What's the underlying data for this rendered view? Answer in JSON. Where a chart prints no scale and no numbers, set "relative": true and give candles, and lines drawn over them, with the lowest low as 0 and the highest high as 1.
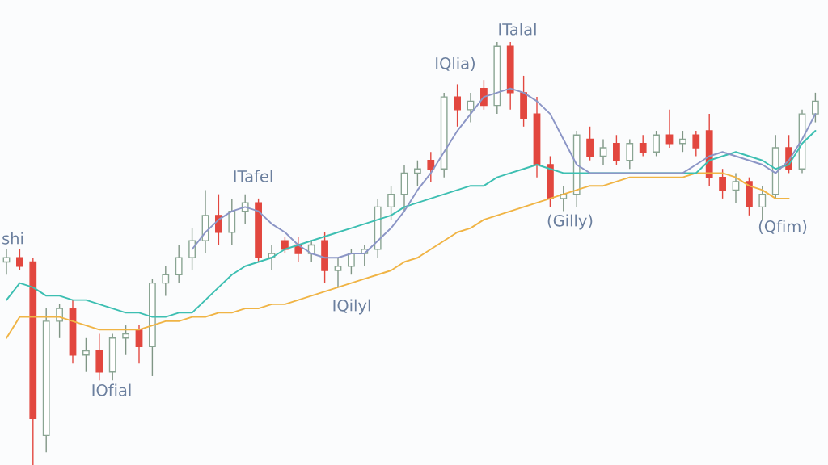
{
  "chart_data": {
    "type": "candlestick",
    "relative": true,
    "categories": [
      null,
      null,
      null,
      null,
      null,
      null,
      null,
      null,
      null,
      null,
      null,
      null,
      null,
      null,
      null,
      null,
      null,
      null,
      null,
      null,
      null,
      null,
      null,
      null,
      null,
      null,
      null,
      null,
      null,
      null,
      null,
      null,
      null,
      null,
      null,
      null,
      null,
      null,
      null,
      null,
      null,
      null,
      null,
      null,
      null,
      null,
      null,
      null,
      null,
      null,
      null,
      null,
      null,
      null,
      null,
      null,
      null,
      null,
      null,
      null,
      null,
      null
    ],
    "ohlc": [
      [
        0.48,
        0.51,
        0.45,
        0.49
      ],
      [
        0.49,
        0.51,
        0.46,
        0.47
      ],
      [
        0.48,
        0.49,
        0,
        0.11
      ],
      [
        0.07,
        0.37,
        0.03,
        0.34
      ],
      [
        0.34,
        0.38,
        0.3,
        0.37
      ],
      [
        0.37,
        0.39,
        0.24,
        0.26
      ],
      [
        0.26,
        0.3,
        0.22,
        0.27
      ],
      [
        0.27,
        0.31,
        0.2,
        0.22
      ],
      [
        0.22,
        0.31,
        0.2,
        0.3
      ],
      [
        0.3,
        0.33,
        0.26,
        0.31
      ],
      [
        0.32,
        0.33,
        0.24,
        0.28
      ],
      [
        0.28,
        0.44,
        0.21,
        0.43
      ],
      [
        0.43,
        0.47,
        0.4,
        0.45
      ],
      [
        0.45,
        0.52,
        0.43,
        0.49
      ],
      [
        0.49,
        0.56,
        0.46,
        0.53
      ],
      [
        0.53,
        0.65,
        0.5,
        0.59
      ],
      [
        0.59,
        0.64,
        0.52,
        0.55
      ],
      [
        0.55,
        0.63,
        0.52,
        0.6
      ],
      [
        0.6,
        0.64,
        0.57,
        0.62
      ],
      [
        0.62,
        0.63,
        0.48,
        0.49
      ],
      [
        0.49,
        0.52,
        0.46,
        0.5
      ],
      [
        0.53,
        0.54,
        0.5,
        0.51
      ],
      [
        0.52,
        0.54,
        0.48,
        0.5
      ],
      [
        0.5,
        0.53,
        0.48,
        0.52
      ],
      [
        0.53,
        0.55,
        0.43,
        0.46
      ],
      [
        0.46,
        0.49,
        0.42,
        0.47
      ],
      [
        0.47,
        0.51,
        0.45,
        0.5
      ],
      [
        0.5,
        0.52,
        0.47,
        0.51
      ],
      [
        0.51,
        0.63,
        0.49,
        0.61
      ],
      [
        0.61,
        0.66,
        0.58,
        0.64
      ],
      [
        0.64,
        0.71,
        0.6,
        0.69
      ],
      [
        0.69,
        0.72,
        0.66,
        0.7
      ],
      [
        0.72,
        0.74,
        0.67,
        0.7
      ],
      [
        0.7,
        0.88,
        0.68,
        0.87
      ],
      [
        0.87,
        0.9,
        0.8,
        0.84
      ],
      [
        0.84,
        0.88,
        0.81,
        0.86
      ],
      [
        0.89,
        0.91,
        0.84,
        0.85
      ],
      [
        0.85,
        1.0,
        0.83,
        0.99
      ],
      [
        0.99,
        1.0,
        0.84,
        0.88
      ],
      [
        0.88,
        0.92,
        0.8,
        0.82
      ],
      [
        0.83,
        0.87,
        0.68,
        0.71
      ],
      [
        0.71,
        0.73,
        0.61,
        0.63
      ],
      [
        0.63,
        0.66,
        0.6,
        0.64
      ],
      [
        0.64,
        0.79,
        0.61,
        0.78
      ],
      [
        0.77,
        0.8,
        0.72,
        0.73
      ],
      [
        0.73,
        0.77,
        0.71,
        0.75
      ],
      [
        0.76,
        0.78,
        0.71,
        0.72
      ],
      [
        0.72,
        0.77,
        0.7,
        0.76
      ],
      [
        0.76,
        0.78,
        0.73,
        0.74
      ],
      [
        0.74,
        0.79,
        0.73,
        0.78
      ],
      [
        0.78,
        0.84,
        0.75,
        0.76
      ],
      [
        0.76,
        0.79,
        0.74,
        0.77
      ],
      [
        0.78,
        0.79,
        0.73,
        0.75
      ],
      [
        0.79,
        0.83,
        0.66,
        0.68
      ],
      [
        0.68,
        0.7,
        0.63,
        0.65
      ],
      [
        0.65,
        0.69,
        0.62,
        0.67
      ],
      [
        0.67,
        0.68,
        0.59,
        0.61
      ],
      [
        0.61,
        0.66,
        0.58,
        0.64
      ],
      [
        0.64,
        0.78,
        0.63,
        0.75
      ],
      [
        0.75,
        0.78,
        0.69,
        0.7
      ],
      [
        0.7,
        0.84,
        0.69,
        0.83
      ],
      [
        0.83,
        0.88,
        0.81,
        0.86
      ]
    ],
    "colors": [
      "#8aa593",
      "#e2473f",
      "#e2473f",
      "#8aa593",
      "#8aa593",
      "#e2473f",
      "#8aa593",
      "#e2473f",
      "#8aa593",
      "#8aa593",
      "#e2473f",
      "#8aa593",
      "#8aa593",
      "#8aa593",
      "#8aa593",
      "#8aa593",
      "#e2473f",
      "#8aa593",
      "#8aa593",
      "#e2473f",
      "#8aa593",
      "#e2473f",
      "#e2473f",
      "#8aa593",
      "#e2473f",
      "#8aa593",
      "#8aa593",
      "#8aa593",
      "#8aa593",
      "#8aa593",
      "#8aa593",
      "#8aa593",
      "#e2473f",
      "#8aa593",
      "#e2473f",
      "#8aa593",
      "#e2473f",
      "#8aa593",
      "#e2473f",
      "#e2473f",
      "#e2473f",
      "#e2473f",
      "#8aa593",
      "#8aa593",
      "#e2473f",
      "#8aa593",
      "#e2473f",
      "#8aa593",
      "#e2473f",
      "#8aa593",
      "#e2473f",
      "#8aa593",
      "#e2473f",
      "#e2473f",
      "#e2473f",
      "#8aa593",
      "#e2473f",
      "#8aa593",
      "#8aa593",
      "#e2473f",
      "#8aa593",
      "#8aa593"
    ],
    "series": [
      {
        "type": "line",
        "color": "#f0b445",
        "values": [
          0.3,
          0.35,
          0.35,
          0.35,
          0.35,
          0.34,
          0.33,
          0.32,
          0.32,
          0.32,
          0.32,
          0.33,
          0.34,
          0.34,
          0.35,
          0.35,
          0.36,
          0.36,
          0.37,
          0.37,
          0.38,
          0.38,
          0.39,
          0.4,
          0.41,
          0.42,
          0.43,
          0.44,
          0.45,
          0.46,
          0.48,
          0.49,
          0.51,
          0.53,
          0.55,
          0.56,
          0.58,
          0.59,
          0.6,
          0.61,
          0.62,
          0.63,
          0.64,
          0.65,
          0.66,
          0.66,
          0.67,
          0.68,
          0.68,
          0.68,
          0.68,
          0.68,
          0.69,
          0.69,
          0.69,
          0.68,
          0.66,
          0.65,
          0.63,
          0.63,
          null,
          null
        ]
      },
      {
        "type": "line",
        "color": "#3dbfb2",
        "values": [
          0.39,
          0.43,
          0.42,
          0.4,
          0.4,
          0.39,
          0.39,
          0.38,
          0.37,
          0.36,
          0.36,
          0.35,
          0.35,
          0.36,
          0.36,
          0.39,
          0.42,
          0.45,
          0.47,
          0.48,
          0.49,
          0.51,
          0.52,
          0.53,
          0.54,
          0.55,
          0.56,
          0.57,
          0.58,
          0.59,
          0.61,
          0.62,
          0.63,
          0.64,
          0.65,
          0.66,
          0.66,
          0.68,
          0.69,
          0.7,
          0.71,
          0.7,
          0.69,
          0.69,
          0.69,
          0.69,
          0.69,
          0.69,
          0.69,
          0.69,
          0.69,
          0.69,
          0.69,
          0.72,
          0.73,
          0.74,
          0.73,
          0.72,
          0.7,
          0.71,
          0.76,
          0.79
        ]
      },
      {
        "type": "line",
        "color": "#8c96c6",
        "values": [
          null,
          null,
          null,
          null,
          null,
          null,
          null,
          null,
          null,
          null,
          null,
          null,
          null,
          null,
          0.51,
          0.55,
          0.58,
          0.6,
          0.61,
          0.6,
          0.57,
          0.55,
          0.52,
          0.5,
          0.49,
          0.49,
          0.5,
          0.5,
          0.53,
          0.56,
          0.6,
          0.65,
          0.69,
          0.74,
          0.79,
          0.83,
          0.87,
          0.88,
          0.89,
          0.88,
          0.86,
          0.83,
          0.77,
          0.71,
          0.69,
          0.69,
          0.69,
          0.69,
          0.69,
          0.69,
          0.69,
          0.69,
          0.71,
          0.73,
          0.74,
          0.73,
          0.72,
          0.71,
          0.69,
          0.72,
          0.77,
          0.83
        ]
      }
    ],
    "annotations": [
      "ITalal",
      "IQlia)",
      "ITafel",
      "shi",
      "IOfial",
      "IQilyl",
      "(Gilly)",
      "(Qfim)"
    ]
  }
}
